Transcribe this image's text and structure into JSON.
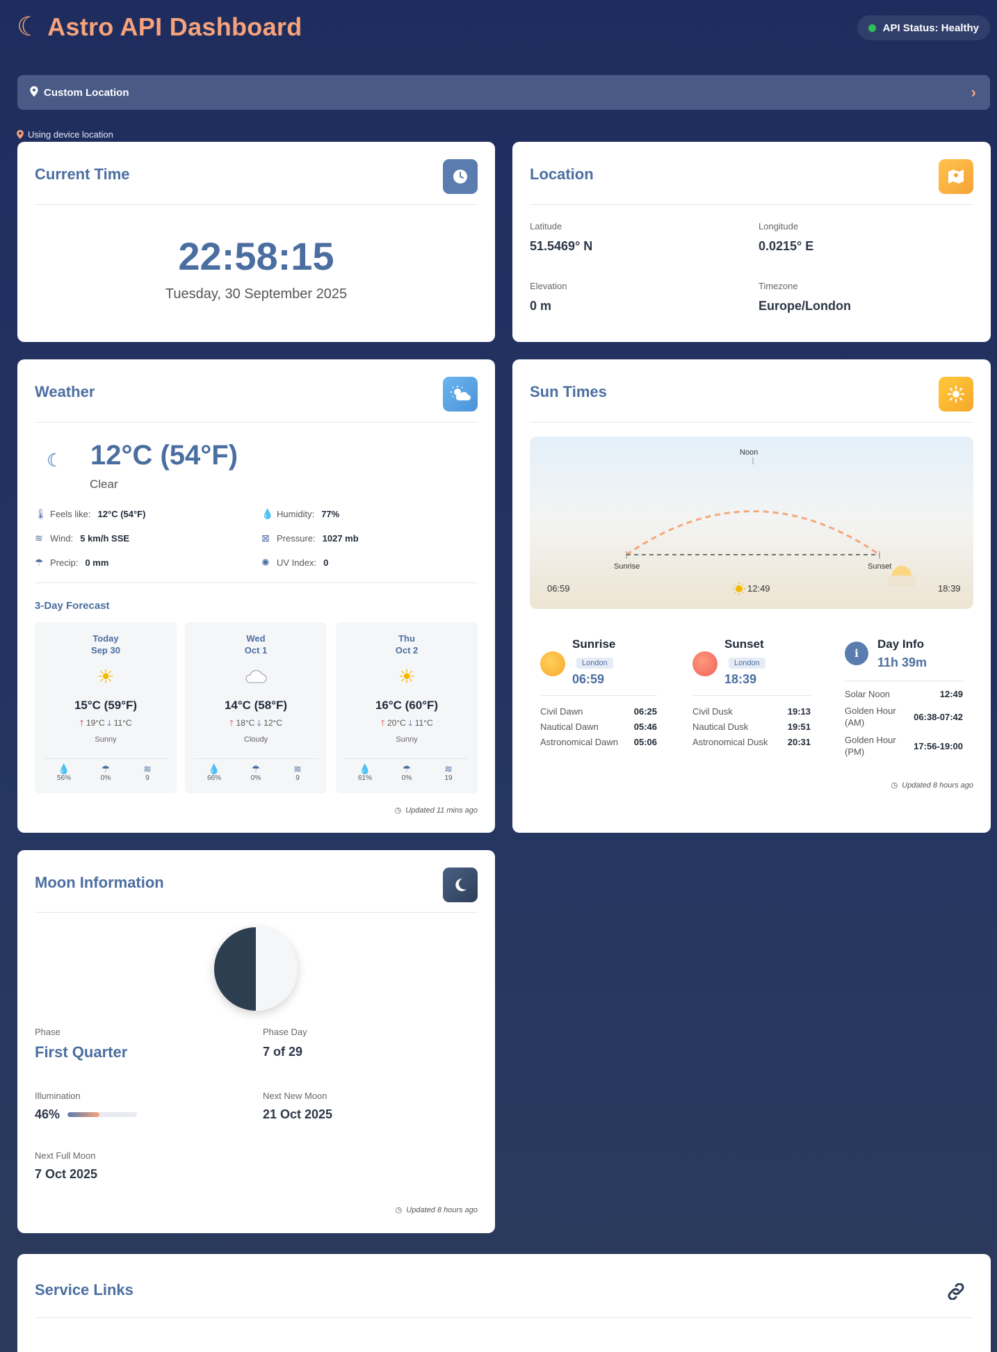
{
  "header": {
    "title": "Astro API Dashboard",
    "api_status": "API Status: Healthy"
  },
  "location_bar": {
    "label": "Custom Location",
    "device_note": "Using device location"
  },
  "current_time": {
    "title": "Current Time",
    "time": "22:58:15",
    "date": "Tuesday, 30 September 2025"
  },
  "location": {
    "title": "Location",
    "latitude_label": "Latitude",
    "latitude": "51.5469° N",
    "longitude_label": "Longitude",
    "longitude": "0.0215° E",
    "elevation_label": "Elevation",
    "elevation": "0 m",
    "timezone_label": "Timezone",
    "timezone": "Europe/London"
  },
  "weather": {
    "title": "Weather",
    "temp": "12°C (54°F)",
    "condition": "Clear",
    "feels_label": "Feels like:",
    "feels": "12°C (54°F)",
    "humidity_label": "Humidity:",
    "humidity": "77%",
    "wind_label": "Wind:",
    "wind": "5 km/h SSE",
    "pressure_label": "Pressure:",
    "pressure": "1027 mb",
    "precip_label": "Precip:",
    "precip": "0 mm",
    "uv_label": "UV Index:",
    "uv": "0",
    "forecast_title": "3-Day Forecast",
    "forecast": [
      {
        "day": "Today",
        "date": "Sep 30",
        "icon": "sun-icon",
        "temp": "15°C (59°F)",
        "high": "19°C",
        "low": "11°C",
        "cond": "Sunny",
        "humidity": "56%",
        "precip": "0%",
        "wind": "9"
      },
      {
        "day": "Wed",
        "date": "Oct 1",
        "icon": "cloud-icon",
        "temp": "14°C (58°F)",
        "high": "18°C",
        "low": "12°C",
        "cond": "Cloudy",
        "humidity": "66%",
        "precip": "0%",
        "wind": "9"
      },
      {
        "day": "Thu",
        "date": "Oct 2",
        "icon": "sun-icon",
        "temp": "16°C (60°F)",
        "high": "20°C",
        "low": "11°C",
        "cond": "Sunny",
        "humidity": "61%",
        "precip": "0%",
        "wind": "19"
      }
    ],
    "updated": "Updated 11 mins ago"
  },
  "sun": {
    "title": "Sun Times",
    "chart": {
      "noon_label": "Noon",
      "sunrise_label": "Sunrise",
      "sunset_label": "Sunset",
      "sunrise_time": "06:59",
      "noon_time": "12:49",
      "sunset_time": "18:39"
    },
    "sunrise": {
      "title": "Sunrise",
      "tag": "London",
      "time": "06:59",
      "rows": [
        {
          "k": "Civil Dawn",
          "v": "06:25"
        },
        {
          "k": "Nautical Dawn",
          "v": "05:46"
        },
        {
          "k": "Astronomical Dawn",
          "v": "05:06"
        }
      ]
    },
    "sunset": {
      "title": "Sunset",
      "tag": "London",
      "time": "18:39",
      "rows": [
        {
          "k": "Civil Dusk",
          "v": "19:13"
        },
        {
          "k": "Nautical Dusk",
          "v": "19:51"
        },
        {
          "k": "Astronomical Dusk",
          "v": "20:31"
        }
      ]
    },
    "dayinfo": {
      "title": "Day Info",
      "length": "11h 39m",
      "solar_noon_label": "Solar Noon",
      "solar_noon": "12:49",
      "gh_am_label": "Golden Hour (AM)",
      "gh_am": "06:38-07:42",
      "gh_pm_label": "Golden Hour (PM)",
      "gh_pm": "17:56-19:00"
    },
    "updated": "Updated 8 hours ago"
  },
  "moon": {
    "title": "Moon Information",
    "phase_label": "Phase",
    "phase": "First Quarter",
    "phase_day_label": "Phase Day",
    "phase_day": "7 of 29",
    "illum_label": "Illumination",
    "illum": "46%",
    "illum_fraction": 0.46,
    "next_new_label": "Next New Moon",
    "next_new": "21 Oct 2025",
    "next_full_label": "Next Full Moon",
    "next_full": "7 Oct 2025",
    "updated": "Updated 8 hours ago"
  },
  "service_links": {
    "title": "Service Links"
  },
  "colors": {
    "accent": "#f6a37c",
    "title_blue": "#4b6ea1",
    "background": "#1f2d5e",
    "status_ok": "#2fbf5a"
  }
}
